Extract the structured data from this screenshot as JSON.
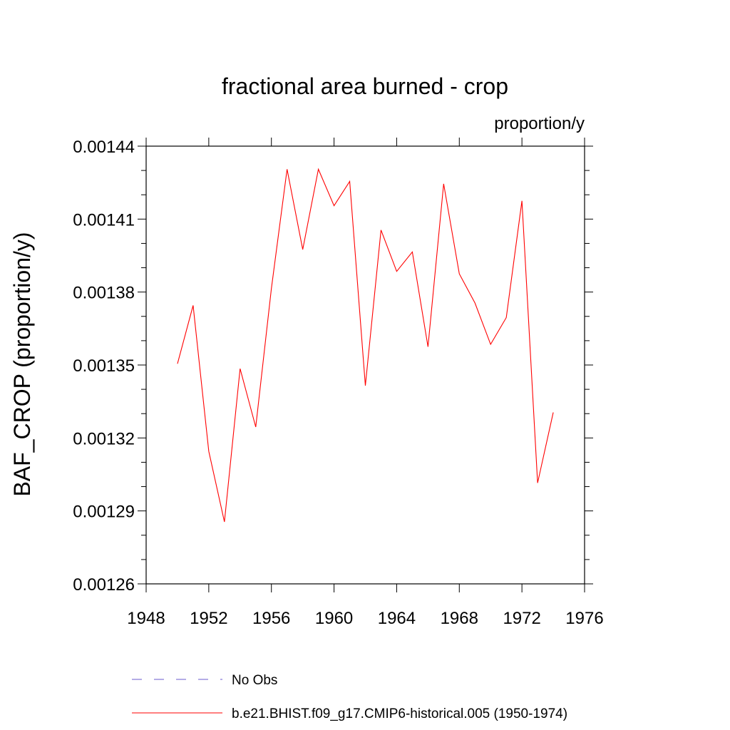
{
  "chart_data": {
    "type": "line",
    "title": "fractional area burned - crop",
    "units_label": "proportion/y",
    "ylabel": "BAF_CROP  (proportion/y)",
    "xlabel": "",
    "xlim": [
      1948,
      1976
    ],
    "ylim": [
      0.00126,
      0.00144
    ],
    "x_ticks": [
      1948,
      1952,
      1956,
      1960,
      1964,
      1968,
      1972,
      1976
    ],
    "x_tick_labels": [
      "1948",
      "1952",
      "1956",
      "1960",
      "1964",
      "1968",
      "1972",
      "1976"
    ],
    "y_ticks": [
      0.00126,
      0.00129,
      0.00132,
      0.00135,
      0.00138,
      0.00141,
      0.00144
    ],
    "y_tick_labels": [
      "0.00126",
      "0.00129",
      "0.00132",
      "0.00135",
      "0.00138",
      "0.00141",
      "0.00144"
    ],
    "grid": false,
    "legend_position": "bottom",
    "series": [
      {
        "name": "b.e21.BHIST.f09_g17.CMIP6-historical.005 (1950-1974)",
        "color": "#ff0000",
        "style": "solid",
        "x": [
          1950,
          1951,
          1952,
          1953,
          1954,
          1955,
          1956,
          1957,
          1958,
          1959,
          1960,
          1961,
          1962,
          1963,
          1964,
          1965,
          1966,
          1967,
          1968,
          1969,
          1970,
          1971,
          1972,
          1973,
          1974
        ],
        "y": [
          0.0013505,
          0.0013745,
          0.0013145,
          0.0012855,
          0.0013485,
          0.0013245,
          0.0013815,
          0.0014305,
          0.0013975,
          0.0014305,
          0.0014155,
          0.0014255,
          0.0013415,
          0.0014055,
          0.0013885,
          0.0013965,
          0.0013575,
          0.0014245,
          0.0013875,
          0.0013755,
          0.0013585,
          0.0013695,
          0.0014175,
          0.0013015,
          0.0013305
        ]
      }
    ],
    "legend": [
      {
        "label": "No Obs",
        "color": "#6a5acd",
        "style": "dashed"
      },
      {
        "label": "b.e21.BHIST.f09_g17.CMIP6-historical.005 (1950-1974)",
        "color": "#ff0000",
        "style": "solid"
      }
    ]
  }
}
